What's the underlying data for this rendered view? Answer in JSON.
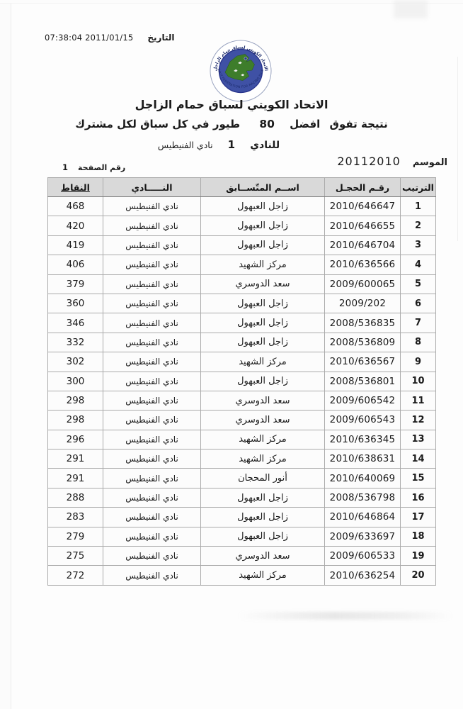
{
  "page": {
    "date_label": "التاريخ",
    "date_value": "07:38:04 2011/01/15",
    "season_label": "الموسم",
    "season_value": "20112010",
    "page_number_label": "رقم الصفحة",
    "page_number_value": "1"
  },
  "logo": {
    "top_arc": "الاتحاد الكويتي لسباق حمام الزاجل",
    "bottom_arc": "KUWAIT FEDERATION FOR RACING PIGEON",
    "disc_color": "#3f51a5",
    "map_color": "#3e7d2b"
  },
  "header": {
    "title": "الاتحاد الكويتي لسباق حمام الزاجل",
    "subtitle": {
      "part1": "نتيجة تفوق",
      "part2": "افضل",
      "number": "80",
      "part3": "طيور في كل سباق لكل مشترك"
    },
    "club_line": {
      "label": "للنادي",
      "number": "1",
      "club": "نادي الفنيطيس"
    }
  },
  "table": {
    "headers": {
      "rank": "الترتيب",
      "ring": "رقـم الحجـل",
      "name": "اســم المتّســابق",
      "club": "النـــــادي",
      "points": "النقاط"
    },
    "rows": [
      {
        "rank": "1",
        "ring": "2010/646647",
        "name": "زاجل العبهول",
        "club": "نادي الفنيطيس",
        "points": "468"
      },
      {
        "rank": "2",
        "ring": "2010/646655",
        "name": "زاجل العبهول",
        "club": "نادي الفنيطيس",
        "points": "420"
      },
      {
        "rank": "3",
        "ring": "2010/646704",
        "name": "زاجل العبهول",
        "club": "نادي الفنيطيس",
        "points": "419"
      },
      {
        "rank": "4",
        "ring": "2010/636566",
        "name": "مركز الشهيد",
        "club": "نادي الفنيطيس",
        "points": "406"
      },
      {
        "rank": "5",
        "ring": "2009/600065",
        "name": "سعد الدوسري",
        "club": "نادي الفنيطيس",
        "points": "379"
      },
      {
        "rank": "6",
        "ring": "2009/202",
        "name": "زاجل العبهول",
        "club": "نادي الفنيطيس",
        "points": "360"
      },
      {
        "rank": "7",
        "ring": "2008/536835",
        "name": "زاجل العبهول",
        "club": "نادي الفنيطيس",
        "points": "346"
      },
      {
        "rank": "8",
        "ring": "2008/536809",
        "name": "زاجل العبهول",
        "club": "نادي الفنيطيس",
        "points": "332"
      },
      {
        "rank": "9",
        "ring": "2010/636567",
        "name": "مركز الشهيد",
        "club": "نادي الفنيطيس",
        "points": "302"
      },
      {
        "rank": "10",
        "ring": "2008/536801",
        "name": "زاجل العبهول",
        "club": "نادي الفنيطيس",
        "points": "300"
      },
      {
        "rank": "11",
        "ring": "2009/606542",
        "name": "سعد الدوسري",
        "club": "نادي الفنيطيس",
        "points": "298"
      },
      {
        "rank": "12",
        "ring": "2009/606543",
        "name": "سعد الدوسري",
        "club": "نادي الفنيطيس",
        "points": "298"
      },
      {
        "rank": "13",
        "ring": "2010/636345",
        "name": "مركز الشهيد",
        "club": "نادي الفنيطيس",
        "points": "296"
      },
      {
        "rank": "14",
        "ring": "2010/638631",
        "name": "مركز الشهيد",
        "club": "نادي الفنيطيس",
        "points": "291"
      },
      {
        "rank": "15",
        "ring": "2010/640069",
        "name": "أنور المحجان",
        "club": "نادي الفنيطيس",
        "points": "291"
      },
      {
        "rank": "16",
        "ring": "2008/536798",
        "name": "زاجل العبهول",
        "club": "نادي الفنيطيس",
        "points": "288"
      },
      {
        "rank": "17",
        "ring": "2010/646864",
        "name": "زاجل العبهول",
        "club": "نادي الفنيطيس",
        "points": "283"
      },
      {
        "rank": "18",
        "ring": "2009/633697",
        "name": "زاجل العبهول",
        "club": "نادي الفنيطيس",
        "points": "279"
      },
      {
        "rank": "19",
        "ring": "2009/606533",
        "name": "سعد الدوسري",
        "club": "نادي الفنيطيس",
        "points": "275"
      },
      {
        "rank": "20",
        "ring": "2010/636254",
        "name": "مركز الشهيد",
        "club": "نادي الفنيطيس",
        "points": "272"
      }
    ]
  }
}
